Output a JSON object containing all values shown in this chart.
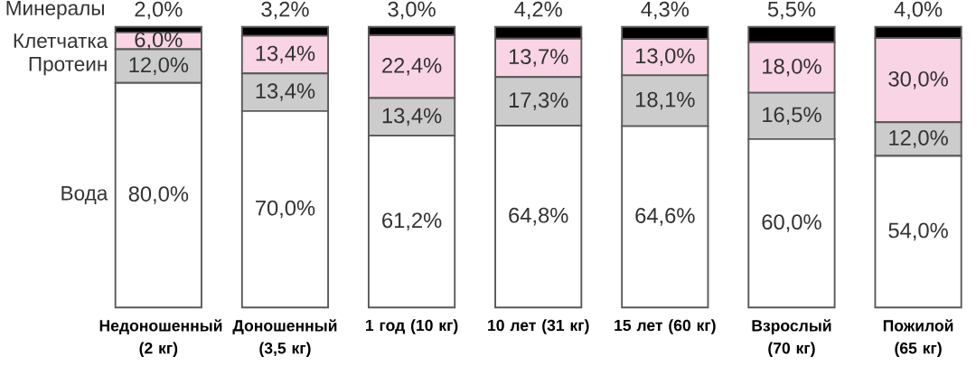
{
  "chart_data": {
    "type": "bar",
    "stacked": true,
    "categories": [
      "Недоношенный (2 кг)",
      "Доношенный (3,5 кг)",
      "1 год (10 кг)",
      "10 лет (31 кг)",
      "15 лет (60 кг)",
      "Взрослый (70 кг)",
      "Пожилой (65 кг)"
    ],
    "series": [
      {
        "name": "Вода",
        "color": "#ffffff",
        "values": [
          80.0,
          70.0,
          61.2,
          64.8,
          64.6,
          60.0,
          54.0
        ],
        "value_labels": [
          "80,0%",
          "70,0%",
          "61,2%",
          "64,8%",
          "64,6%",
          "60,0%",
          "54,0%"
        ]
      },
      {
        "name": "Протеин",
        "color": "#cccccc",
        "values": [
          12.0,
          13.4,
          13.4,
          17.3,
          18.1,
          16.5,
          12.0
        ],
        "value_labels": [
          "12,0%",
          "13,4%",
          "13,4%",
          "17,3%",
          "18,1%",
          "16,5%",
          "12,0%"
        ]
      },
      {
        "name": "Клетчатка",
        "color": "#f9d4e4",
        "values": [
          6.0,
          13.4,
          22.4,
          13.7,
          13.0,
          18.0,
          30.0
        ],
        "value_labels": [
          "6,0%",
          "13,4%",
          "22,4%",
          "13,7%",
          "13,0%",
          "18,0%",
          "30,0%"
        ]
      },
      {
        "name": "Минералы",
        "color": "#000000",
        "values": [
          2.0,
          3.2,
          3.0,
          4.2,
          4.3,
          5.5,
          4.0
        ],
        "value_labels": [
          "2,0%",
          "3,2%",
          "3,0%",
          "4,2%",
          "4,3%",
          "5,5%",
          "4,0%"
        ]
      }
    ]
  }
}
